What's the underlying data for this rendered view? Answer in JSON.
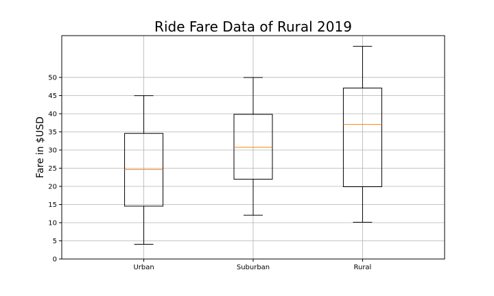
{
  "chart_data": {
    "type": "box",
    "title": "Ride Fare Data of Rural 2019",
    "xlabel": "",
    "ylabel": "Fare in $USD",
    "categories": [
      "Urban",
      "Suburban",
      "Rural"
    ],
    "boxes": [
      {
        "name": "Urban",
        "whislo": 4.05,
        "q1": 14.55,
        "med": 24.64,
        "q3": 34.58,
        "whishi": 44.97
      },
      {
        "name": "Suburban",
        "whislo": 12.05,
        "q1": 21.97,
        "med": 30.75,
        "q3": 39.83,
        "whishi": 49.96
      },
      {
        "name": "Rural",
        "whislo": 10.11,
        "q1": 19.9,
        "med": 37.05,
        "q3": 47.07,
        "whishi": 58.55
      }
    ],
    "yticks": [
      0,
      5,
      10,
      15,
      20,
      25,
      30,
      35,
      40,
      45,
      50
    ],
    "ylim": [
      0,
      61.5
    ],
    "grid": true,
    "colors": {
      "box": "#000000",
      "median": "#ff7f0e",
      "grid": "#b0b0b0"
    }
  }
}
